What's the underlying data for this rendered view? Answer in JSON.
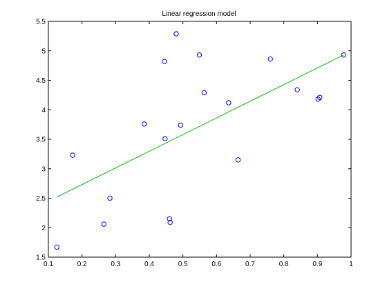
{
  "chart_data": {
    "type": "scatter",
    "title": "Linear regression model",
    "xlabel": "",
    "ylabel": "",
    "xlim": [
      0.1,
      1.0
    ],
    "ylim": [
      1.5,
      5.5
    ],
    "xticks": [
      "0.1",
      "0.2",
      "0.3",
      "0.4",
      "0.5",
      "0.6",
      "0.7",
      "0.8",
      "0.9",
      "1"
    ],
    "yticks": [
      "1.5",
      "2",
      "2.5",
      "3",
      "3.5",
      "4",
      "4.5",
      "5",
      "5.5"
    ],
    "grid": false,
    "legend": "none",
    "series": [
      {
        "kind": "scatter",
        "marker": "circle-open",
        "color": "#0000ff",
        "x": [
          0.125,
          0.172,
          0.265,
          0.283,
          0.385,
          0.445,
          0.447,
          0.46,
          0.462,
          0.48,
          0.493,
          0.549,
          0.563,
          0.636,
          0.664,
          0.76,
          0.84,
          0.902,
          0.907,
          0.978
        ],
        "y": [
          1.67,
          3.23,
          2.06,
          2.5,
          3.76,
          4.82,
          3.51,
          2.15,
          2.09,
          5.29,
          3.74,
          4.93,
          4.29,
          4.12,
          3.15,
          4.86,
          4.34,
          4.18,
          4.21,
          4.93
        ]
      },
      {
        "kind": "line",
        "color": "#00b300",
        "x": [
          0.125,
          0.978
        ],
        "y": [
          2.52,
          4.93
        ]
      }
    ]
  }
}
